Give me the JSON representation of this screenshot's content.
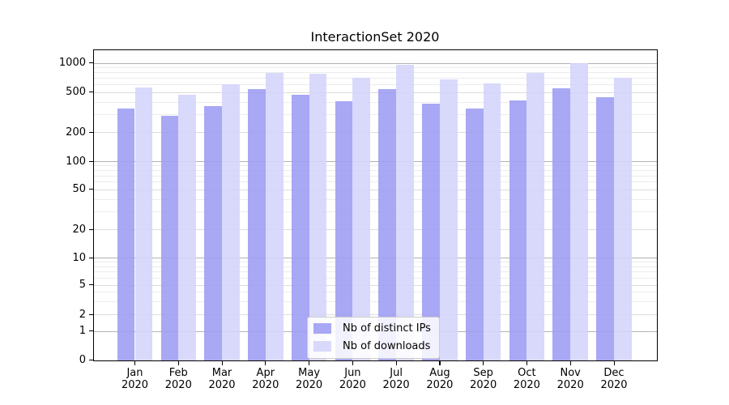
{
  "chart_data": {
    "type": "bar",
    "title": "InteractionSet 2020",
    "categories": [
      "Jan",
      "Feb",
      "Mar",
      "Apr",
      "May",
      "Jun",
      "Jul",
      "Aug",
      "Sep",
      "Oct",
      "Nov",
      "Dec"
    ],
    "x_year_label": "2020",
    "series": [
      {
        "name": "Nb of distinct IPs",
        "color": "rgba(157,157,244,0.89)",
        "values": [
          345,
          290,
          365,
          540,
          470,
          405,
          540,
          385,
          345,
          410,
          545,
          440
        ]
      },
      {
        "name": "Nb of downloads",
        "color": "rgba(212,212,250,0.89)",
        "values": [
          560,
          470,
          600,
          790,
          770,
          700,
          950,
          670,
          615,
          785,
          1000,
          695
        ]
      }
    ],
    "y_ticks": [
      0,
      1,
      2,
      5,
      10,
      20,
      50,
      100,
      200,
      500,
      1000
    ],
    "y_scale": "symlog",
    "ylim": [
      0,
      1400
    ],
    "grid": "on",
    "legend_position": "lower center"
  }
}
